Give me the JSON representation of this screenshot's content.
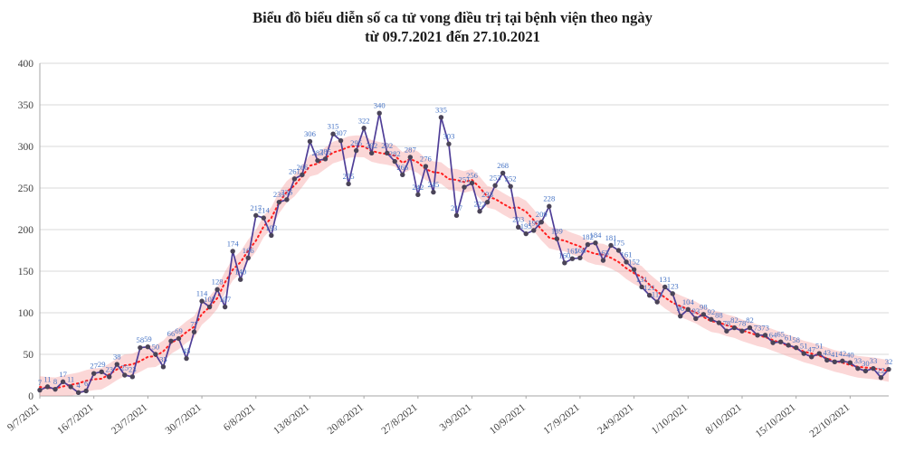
{
  "page": {
    "background": "#FFFFFF"
  },
  "chart_data": {
    "type": "line",
    "title": "Biểu đồ biểu diễn số ca tử vong điều trị tại bệnh viện theo ngày",
    "subtitle": "từ 09.7.2021 đến 27.10.2021",
    "xlabel": "",
    "ylabel": "",
    "ylim": [
      0,
      400
    ],
    "y_ticks": [
      0,
      50,
      100,
      150,
      200,
      250,
      300,
      350,
      400
    ],
    "grid": "horizontal",
    "legend": "none",
    "x_tick_every": 7,
    "x_tick_labels": [
      "9/7/2021",
      "16/7/2021",
      "23/7/2021",
      "30/7/2021",
      "6/8/2021",
      "13/8/2021",
      "20/8/2021",
      "27/8/2021",
      "3/9/2021",
      "10/9/2021",
      "17/9/2021",
      "24/9/2021",
      "1/10/2021",
      "8/10/2021",
      "15/10/2021",
      "22/10/2021"
    ],
    "dates": [
      "9/7",
      "10/7",
      "11/7",
      "12/7",
      "13/7",
      "14/7",
      "15/7",
      "16/7",
      "17/7",
      "18/7",
      "19/7",
      "20/7",
      "21/7",
      "22/7",
      "23/7",
      "24/7",
      "25/7",
      "26/7",
      "27/7",
      "28/7",
      "29/7",
      "30/7",
      "31/7",
      "1/8",
      "2/8",
      "3/8",
      "4/8",
      "5/8",
      "6/8",
      "7/8",
      "8/8",
      "9/8",
      "10/8",
      "11/8",
      "12/8",
      "13/8",
      "14/8",
      "15/8",
      "16/8",
      "17/8",
      "18/8",
      "19/8",
      "20/8",
      "21/8",
      "22/8",
      "23/8",
      "24/8",
      "25/8",
      "26/8",
      "27/8",
      "28/8",
      "29/8",
      "30/8",
      "31/8",
      "1/9",
      "2/9",
      "3/9",
      "4/9",
      "5/9",
      "6/9",
      "7/9",
      "8/9",
      "9/9",
      "10/9",
      "11/9",
      "12/9",
      "13/9",
      "14/9",
      "15/9",
      "16/9",
      "17/9",
      "18/9",
      "19/9",
      "20/9",
      "21/9",
      "22/9",
      "23/9",
      "24/9",
      "25/9",
      "26/9",
      "27/9",
      "28/9",
      "29/9",
      "30/9",
      "1/10",
      "2/10",
      "3/10",
      "4/10",
      "5/10",
      "6/10",
      "7/10",
      "8/10",
      "9/10",
      "10/10",
      "11/10",
      "12/10",
      "13/10",
      "14/10",
      "15/10",
      "16/10",
      "17/10",
      "18/10",
      "19/10",
      "20/10",
      "21/10",
      "22/10",
      "23/10",
      "24/10",
      "25/10",
      "26/10",
      "27/10"
    ],
    "values": [
      7,
      11,
      8,
      17,
      11,
      4,
      6,
      27,
      29,
      23,
      38,
      25,
      23,
      58,
      59,
      50,
      35,
      66,
      69,
      45,
      77,
      114,
      107,
      128,
      107,
      174,
      140,
      166,
      217,
      214,
      193,
      233,
      236,
      261,
      266,
      306,
      283,
      285,
      315,
      307,
      255,
      295,
      322,
      292,
      340,
      292,
      282,
      266,
      287,
      242,
      276,
      245,
      335,
      303,
      217,
      251,
      256,
      222,
      233,
      253,
      268,
      252,
      203,
      195,
      199,
      209,
      228,
      189,
      160,
      165,
      166,
      182,
      184,
      163,
      181,
      175,
      161,
      152,
      131,
      121,
      113,
      131,
      123,
      96,
      104,
      93,
      98,
      92,
      88,
      78,
      82,
      78,
      82,
      73,
      73,
      64,
      65,
      61,
      58,
      51,
      47,
      51,
      43,
      41,
      42,
      40,
      33,
      30,
      33,
      22,
      32
    ],
    "trend": "moving-average",
    "trend_window": 9,
    "trend_band_halfwidth": 13,
    "colors": {
      "line": "#4F3E97",
      "marker": "#4A4458",
      "data_label": "#4472C4",
      "trend": "#FF1F1F",
      "trend_band": "#F6A0A0",
      "grid": "#D9D9D9",
      "axis": "#A6A6A6",
      "tick_text": "#3F3F3F",
      "title_text": "#1B1B1B"
    }
  }
}
